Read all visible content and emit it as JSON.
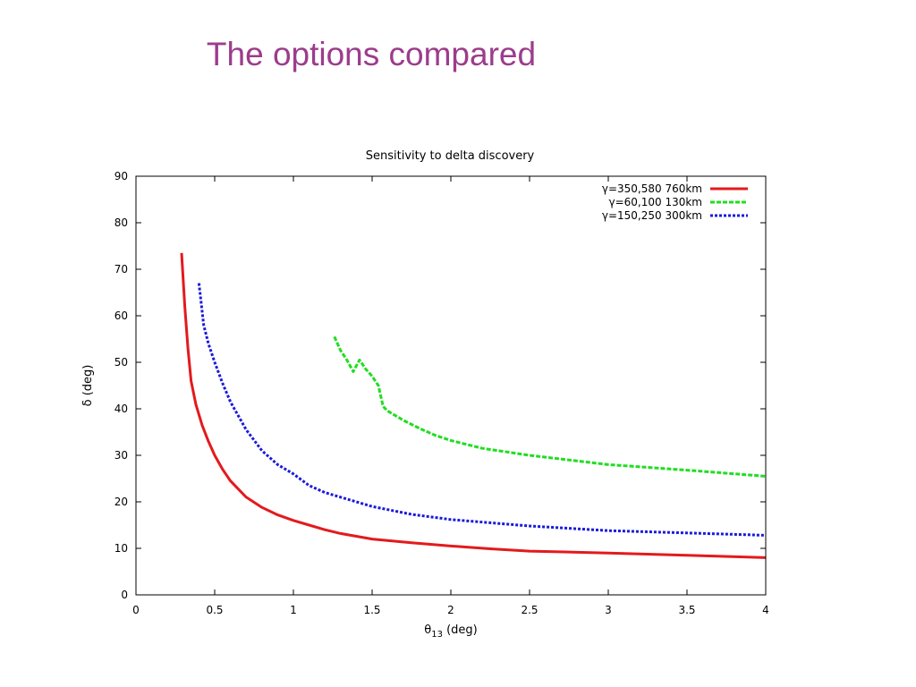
{
  "slide": {
    "title": "The options compared"
  },
  "chart_data": {
    "type": "line",
    "title": "Sensitivity to delta discovery",
    "xlabel_sym": "θ",
    "xlabel_sub": "13",
    "xlabel_unit": " (deg)",
    "ylabel": "δ (deg)",
    "xlim": [
      0,
      4
    ],
    "ylim": [
      0,
      90
    ],
    "xticks": [
      0,
      0.5,
      1,
      1.5,
      2,
      2.5,
      3,
      3.5,
      4
    ],
    "xtick_labels": [
      "0",
      "0.5",
      "1",
      "1.5",
      "2",
      "2.5",
      "3",
      "3.5",
      "4"
    ],
    "yticks": [
      0,
      10,
      20,
      30,
      40,
      50,
      60,
      70,
      80,
      90
    ],
    "ytick_labels": [
      "0",
      "10",
      "20",
      "30",
      "40",
      "50",
      "60",
      "70",
      "80",
      "90"
    ],
    "grid": false,
    "legend_position": "top-right",
    "series": [
      {
        "name": "γ=350,580 760km",
        "color": "#e31a1c",
        "dash": "solid",
        "x": [
          0.29,
          0.31,
          0.33,
          0.35,
          0.38,
          0.42,
          0.46,
          0.5,
          0.55,
          0.6,
          0.7,
          0.8,
          0.9,
          1.0,
          1.1,
          1.2,
          1.3,
          1.4,
          1.5,
          1.75,
          2.0,
          2.25,
          2.5,
          3.0,
          3.5,
          4.0
        ],
        "y": [
          73.5,
          62,
          53,
          46,
          41,
          36.5,
          33,
          30,
          27,
          24.5,
          21,
          18.8,
          17.2,
          16,
          15,
          14,
          13.2,
          12.6,
          12,
          11.2,
          10.5,
          9.9,
          9.4,
          9.0,
          8.5,
          8.0
        ]
      },
      {
        "name": "γ=60,100 130km",
        "color": "#22dd22",
        "dash": "5,2",
        "x": [
          1.26,
          1.3,
          1.34,
          1.38,
          1.42,
          1.46,
          1.5,
          1.54,
          1.57,
          1.6,
          1.7,
          1.8,
          1.9,
          2.0,
          2.2,
          2.5,
          3.0,
          3.5,
          4.0
        ],
        "y": [
          55.5,
          52.5,
          50.5,
          48,
          50.5,
          48.5,
          47,
          45,
          40.5,
          39.5,
          37.5,
          35.8,
          34.3,
          33.2,
          31.5,
          30,
          28,
          26.8,
          25.5
        ]
      },
      {
        "name": "γ=150,250 300km",
        "color": "#1a1adc",
        "dash": "3,2",
        "x": [
          0.4,
          0.43,
          0.46,
          0.5,
          0.55,
          0.6,
          0.7,
          0.8,
          0.9,
          1.0,
          1.1,
          1.2,
          1.3,
          1.4,
          1.5,
          1.75,
          2.0,
          2.25,
          2.5,
          3.0,
          3.5,
          4.0
        ],
        "y": [
          67,
          58,
          54,
          50,
          45.5,
          41.5,
          35.5,
          31,
          28,
          26,
          23.5,
          22,
          21,
          20,
          19,
          17.3,
          16.2,
          15.5,
          14.8,
          13.8,
          13.3,
          12.8
        ]
      }
    ]
  }
}
